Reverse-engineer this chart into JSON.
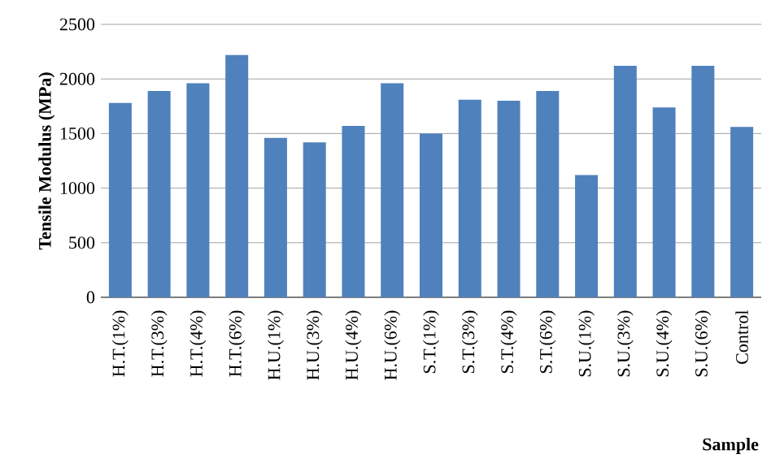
{
  "chart_data": {
    "type": "bar",
    "xlabel": "Sample",
    "ylabel": "Tensile Modulus (MPa)",
    "categories": [
      "H.T.(1%)",
      "H.T.(3%)",
      "H.T.(4%)",
      "H.T.(6%)",
      "H.U.(1%)",
      "H.U.(3%)",
      "H.U.(4%)",
      "H.U.(6%)",
      "S.T.(1%)",
      "S.T.(3%)",
      "S.T.(4%)",
      "S.T.(6%)",
      "S.U.(1%)",
      "S.U.(3%)",
      "S.U.(4%)",
      "S.U.(6%)",
      "Control"
    ],
    "values": [
      1780,
      1890,
      1960,
      2220,
      1460,
      1420,
      1570,
      1960,
      1500,
      1810,
      1800,
      1890,
      1120,
      2120,
      1740,
      2120,
      1560
    ],
    "color": "#4f81bd",
    "ylim": [
      0,
      2500
    ],
    "yticks": [
      0,
      500,
      1000,
      1500,
      2000,
      2500
    ],
    "grid": "y"
  }
}
